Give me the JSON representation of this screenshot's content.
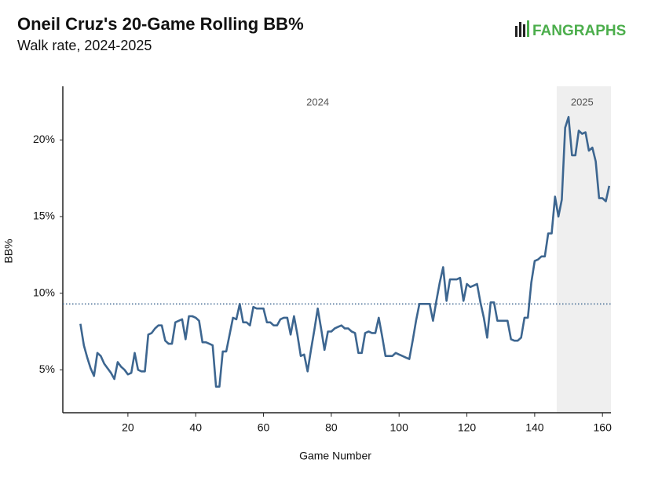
{
  "chart_data": {
    "type": "line",
    "title": "Oneil Cruz's 20-Game Rolling BB%",
    "subtitle": "Walk rate, 2024-2025",
    "logo": "FANGRAPHS",
    "x_label": "Game Number",
    "y_label": "BB%",
    "xlim": [
      0.8,
      162.5
    ],
    "ylim": [
      2.2,
      23.5
    ],
    "xticks": [
      20,
      40,
      60,
      80,
      100,
      120,
      140,
      160
    ],
    "yticks": [
      {
        "value": 5,
        "label": "5%"
      },
      {
        "value": 10,
        "label": "10%"
      },
      {
        "value": 15,
        "label": "15%"
      },
      {
        "value": 20,
        "label": "20%"
      }
    ],
    "reference_line": 9.3,
    "shaded_region": [
      146.5,
      162.5
    ],
    "annotations": [
      {
        "text": "2024",
        "x": 76
      },
      {
        "text": "2025",
        "x": 154
      }
    ],
    "x": [
      6,
      7,
      8,
      9,
      10,
      11,
      12,
      13,
      14,
      15,
      16,
      17,
      18,
      19,
      20,
      21,
      22,
      23,
      24,
      25,
      26,
      27,
      28,
      29,
      30,
      31,
      32,
      33,
      34,
      35,
      36,
      37,
      38,
      39,
      40,
      41,
      42,
      43,
      44,
      45,
      46,
      47,
      48,
      49,
      50,
      51,
      52,
      53,
      54,
      55,
      56,
      57,
      58,
      59,
      60,
      61,
      62,
      63,
      64,
      65,
      66,
      67,
      68,
      69,
      70,
      71,
      72,
      73,
      74,
      75,
      76,
      77,
      78,
      79,
      80,
      81,
      82,
      83,
      84,
      85,
      86,
      87,
      88,
      89,
      90,
      91,
      92,
      93,
      94,
      95,
      96,
      97,
      98,
      99,
      100,
      101,
      102,
      103,
      104,
      105,
      106,
      107,
      108,
      109,
      110,
      111,
      112,
      113,
      114,
      115,
      116,
      117,
      118,
      119,
      120,
      121,
      122,
      123,
      124,
      125,
      126,
      127,
      128,
      129,
      130,
      131,
      132,
      133,
      134,
      135,
      136,
      137,
      138,
      139,
      140,
      141,
      142,
      143,
      144,
      145,
      146,
      147,
      148,
      149,
      150,
      151,
      152,
      153,
      154,
      155,
      156,
      157,
      158,
      159,
      160,
      161,
      162
    ],
    "series": [
      {
        "name": "BB%",
        "color": "#3d6690",
        "values": [
          8.0,
          6.6,
          5.8,
          5.1,
          4.6,
          6.1,
          5.9,
          5.4,
          5.1,
          4.8,
          4.4,
          5.5,
          5.2,
          5.0,
          4.7,
          4.8,
          6.1,
          5.0,
          4.9,
          4.9,
          7.3,
          7.4,
          7.7,
          7.9,
          7.9,
          6.9,
          6.7,
          6.7,
          8.1,
          8.2,
          8.3,
          7.0,
          8.5,
          8.5,
          8.4,
          8.2,
          6.8,
          6.8,
          6.7,
          6.6,
          3.9,
          3.9,
          6.2,
          6.2,
          7.3,
          8.4,
          8.3,
          9.3,
          8.1,
          8.1,
          7.9,
          9.1,
          9.0,
          9.0,
          9.0,
          8.1,
          8.1,
          7.9,
          7.9,
          8.3,
          8.4,
          8.4,
          7.3,
          8.5,
          7.3,
          5.9,
          6.0,
          4.9,
          6.3,
          7.6,
          9.0,
          7.7,
          6.3,
          7.5,
          7.5,
          7.7,
          7.8,
          7.9,
          7.7,
          7.7,
          7.5,
          7.4,
          6.1,
          6.1,
          7.4,
          7.5,
          7.4,
          7.4,
          8.4,
          7.2,
          5.9,
          5.9,
          5.9,
          6.1,
          6.0,
          5.9,
          5.8,
          5.7,
          6.9,
          8.2,
          9.3,
          9.3,
          9.3,
          9.3,
          8.2,
          9.5,
          10.7,
          11.7,
          9.5,
          10.9,
          10.9,
          10.9,
          11.0,
          9.5,
          10.6,
          10.4,
          10.5,
          10.6,
          9.4,
          8.4,
          7.1,
          9.4,
          9.4,
          8.2,
          8.2,
          8.2,
          8.2,
          7.0,
          6.9,
          6.9,
          7.1,
          8.4,
          8.4,
          10.7,
          12.1,
          12.2,
          12.4,
          12.4,
          13.9,
          13.9,
          16.3,
          15.0,
          16.1,
          20.8,
          21.5,
          19.0,
          19.0,
          20.6,
          20.4,
          20.5,
          19.3,
          19.5,
          18.6,
          16.2,
          16.2,
          16.0,
          17.0
        ]
      }
    ]
  }
}
